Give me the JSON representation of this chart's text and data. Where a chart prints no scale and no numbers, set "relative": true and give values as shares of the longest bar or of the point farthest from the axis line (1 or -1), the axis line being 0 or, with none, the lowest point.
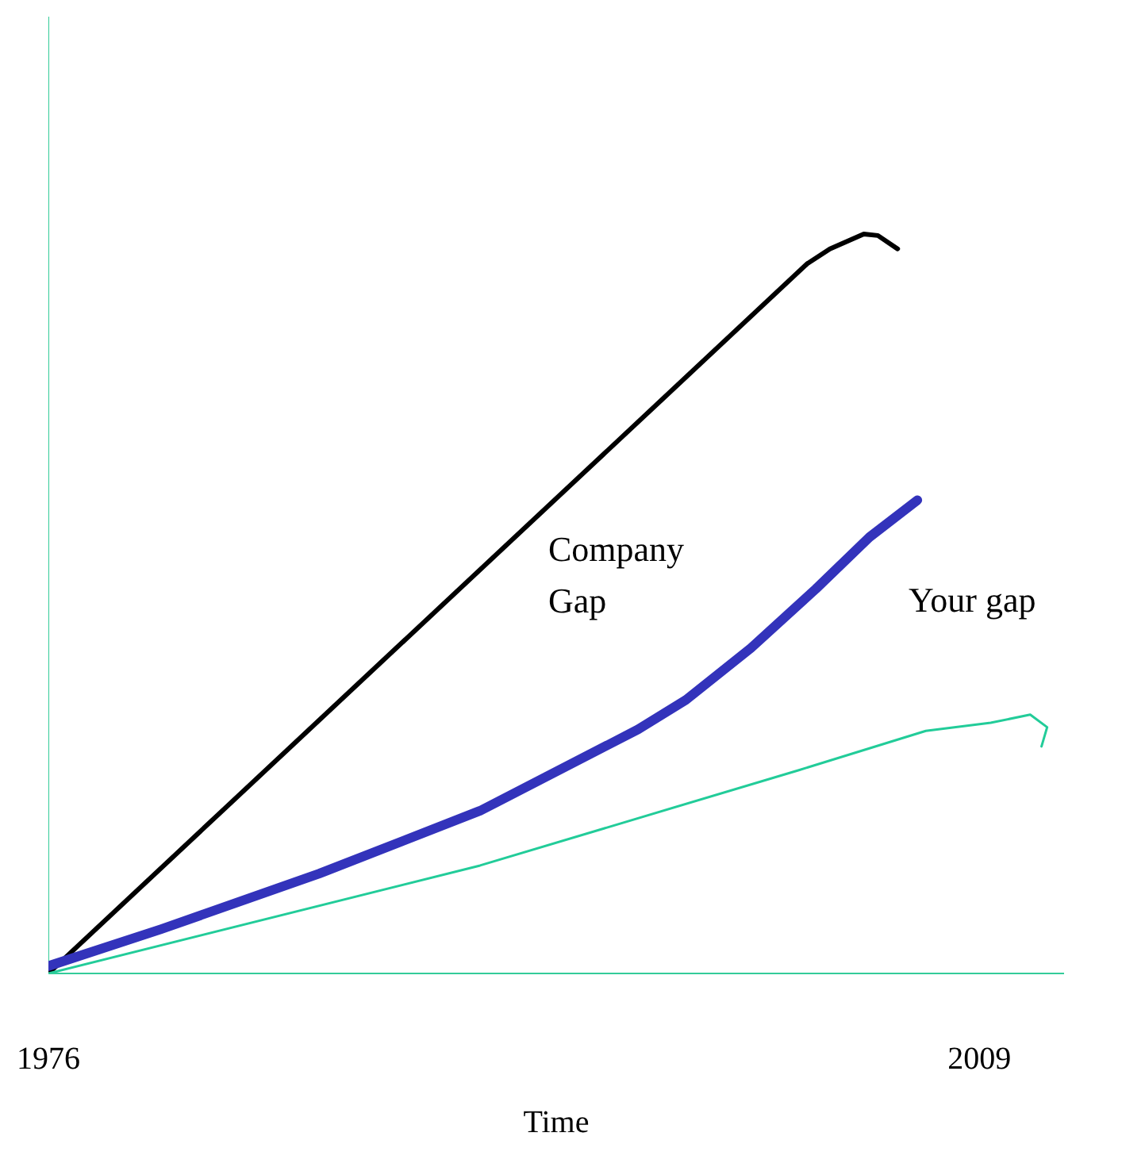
{
  "chart_data": {
    "type": "line",
    "relative": true,
    "xlabel": "Time",
    "xlim": [
      1976,
      2012
    ],
    "xticks": [
      1976,
      2009
    ],
    "grid": false,
    "series": [
      {
        "color": "#000000",
        "x": [
          1976,
          2002.9,
          2003.7,
          2004.9,
          2005.4,
          2006.1
        ],
        "values": [
          0,
          0.96,
          0.98,
          1,
          0.998,
          0.98
        ]
      },
      {
        "color": "#3333bb",
        "x": [
          1976,
          1980,
          1985.6,
          1991.3,
          1996.9,
          1998.6,
          2000.9,
          2003.2,
          2005.1,
          2006.8
        ],
        "values": [
          0.01,
          0.06,
          0.135,
          0.22,
          0.33,
          0.37,
          0.44,
          0.52,
          0.59,
          0.64
        ]
      },
      {
        "color": "#22cc99",
        "x": [
          1976,
          1991.3,
          2002.6,
          2007.1,
          2009.4,
          2010.8,
          2011.4,
          2011.2
        ],
        "values": [
          0,
          0.146,
          0.275,
          0.328,
          0.339,
          0.35,
          0.333,
          0.307
        ]
      }
    ],
    "annotations": [
      "Company\nGap",
      "Your gap"
    ]
  }
}
